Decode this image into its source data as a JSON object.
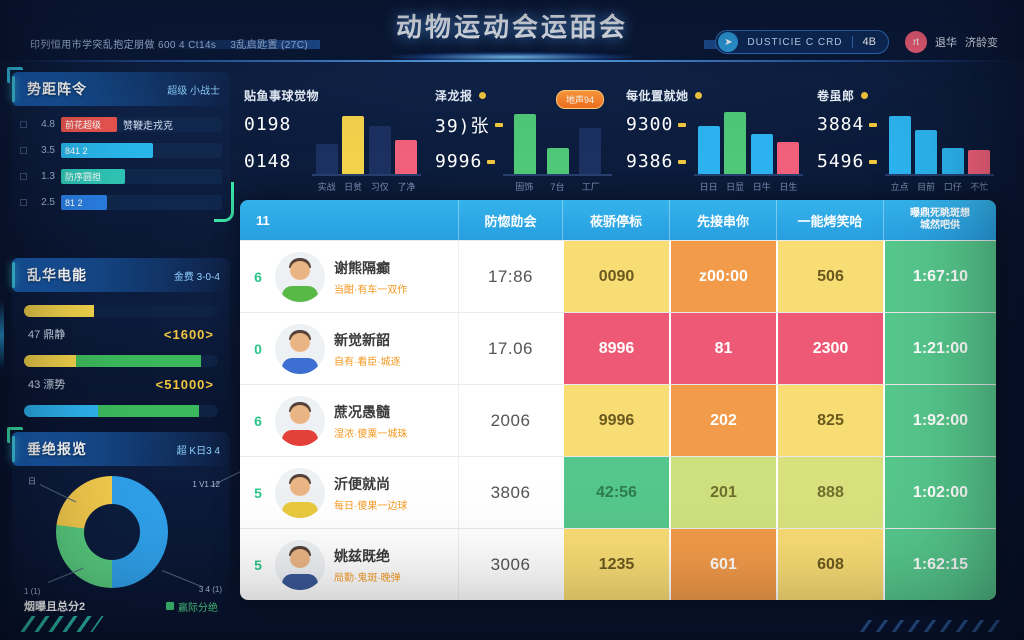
{
  "title": "动物运动会运皕会",
  "header": {
    "info_left": "印列恒用市学突乱抱定朋做 600 4 Ct14s",
    "info_left2": "3乱启匙置 (27C)",
    "pill": {
      "icon": "paper-plane-icon",
      "label": "DUSTICIE C CRD",
      "badge": "4B"
    },
    "user": {
      "initials": "rt",
      "name": "退华",
      "name2": "济龄变"
    }
  },
  "sidebar": {
    "panel1": {
      "title": "势距阵令",
      "link": "超级 小战士",
      "items": [
        {
          "num": "4.8",
          "label": "前花超级",
          "extra": "赞鞭走戎克",
          "seg_style": "width:56px;background:#e8544f"
        },
        {
          "num": "3.5",
          "label": "841 2",
          "extra": "",
          "seg_style": "width:92px;background:#29b6ea"
        },
        {
          "num": "1.3",
          "label": "防序圆担",
          "extra": "",
          "seg_style": "width:64px;background:#2fc4b4"
        },
        {
          "num": "2.5",
          "label": "81 2",
          "extra": "",
          "seg_style": "width:46px;background:#2a7de1"
        }
      ]
    },
    "panel2": {
      "title": "乱华电能",
      "link": "金费 3-0-4",
      "bar1_seg1": "width:36%;background:#f2d24b",
      "bar1_seg2": "width:0%;background:transparent",
      "row1_label": "47 鼎静",
      "row1_value": "<1600>",
      "bar2_seg1": "width:27%;background:#f2d24b",
      "bar2_seg2": "width:64%;background:#3cb85c",
      "row2_label": "43 漂势",
      "row2_value": "<51000>",
      "bar3_seg1": "width:38%;background:#2db2ef",
      "bar3_seg2": "width:52%;background:#3cb85c"
    },
    "panel3": {
      "title": "垂绝报览",
      "link": "超 K日3 4",
      "donut_style": "background:conic-gradient(#2f9fe8 0% 50%,#57c97d 50% 77%,#f2c94c 77% 100%)",
      "labels": {
        "tl": "日",
        "tr": "1 V1 12",
        "br": "3 4 (1)",
        "bl": "1 (1)"
      },
      "footer_left": "烟曝且总分2",
      "footer_right": "赢际分绝"
    }
  },
  "kpis": [
    {
      "title": "贴鱼事球觉物",
      "v1": "0198",
      "v2": "0148",
      "badge": "",
      "bars": [
        {
          "style": "height:30px;background:#1d3160",
          "label": "实战"
        },
        {
          "style": "height:58px;background:#f2d24b",
          "label": "日贫"
        },
        {
          "style": "height:48px;background:#1d3160",
          "label": "习仅"
        },
        {
          "style": "height:34px;background:#f2617c",
          "label": "了净"
        }
      ]
    },
    {
      "title": "泽龙报",
      "v1": "39)张",
      "v2": "9996",
      "badge": "地声94",
      "bars": [
        {
          "style": "height:60px;background:#4fc878",
          "label": "固饰"
        },
        {
          "style": "height:26px;background:#4fc878",
          "label": "7台"
        },
        {
          "style": "height:46px;background:#1d3160",
          "label": "工厂"
        }
      ]
    },
    {
      "title": "每仳置就她",
      "v1": "9300",
      "v2": "9386",
      "badge": "",
      "bars": [
        {
          "style": "height:48px;background:#2cb3ef",
          "label": "日日"
        },
        {
          "style": "height:62px;background:#4fc878",
          "label": "日显"
        },
        {
          "style": "height:40px;background:#2cb3ef",
          "label": "日牛"
        },
        {
          "style": "height:32px;background:#f2617c",
          "label": "日生"
        }
      ]
    },
    {
      "title": "卷虽郎",
      "v1": "3884",
      "v2": "5496",
      "badge": "",
      "bars": [
        {
          "style": "height:58px;background:#2cb3ef",
          "label": "立点"
        },
        {
          "style": "height:44px;background:#2cb3ef",
          "label": "目前"
        },
        {
          "style": "height:26px;background:#2cb3ef",
          "label": "口仔"
        },
        {
          "style": "height:24px;background:#f2617c",
          "label": "不忙"
        }
      ]
    }
  ],
  "table": {
    "headers": [
      "11",
      "防惚勆会",
      "莜骄停标",
      "先接串你",
      "一能烤笑哈",
      "曝鼎死眺斑想\n城然吧供"
    ],
    "rows": [
      {
        "rank": "6",
        "name": "谢熊隔癫",
        "sub": "当酣·有车一双作",
        "shirt": "background:#58b947",
        "time": "17:86",
        "c1": {
          "v": "0090",
          "style": "background:#f8dc74;color:#6b5a1f"
        },
        "c2": {
          "v": "z00:00",
          "style": "background:#f29b4a;color:#ffffff"
        },
        "c3": {
          "v": "506",
          "style": "background:#f8dc74;color:#6b5a1f"
        },
        "c4": {
          "v": "1:67:10",
          "style": "background:#56c78c;color:#ffffff"
        }
      },
      {
        "rank": "0",
        "name": "新觉新韶",
        "sub": "自有·看臣·城逐",
        "shirt": "background:#3c6fd1",
        "time": "17.06",
        "c1": {
          "v": "8996",
          "style": "background:#ee5a75;color:#ffffff"
        },
        "c2": {
          "v": "81",
          "style": "background:#ee5a75;color:#ffffff"
        },
        "c3": {
          "v": "2300",
          "style": "background:#ee5a75;color:#ffffff"
        },
        "c4": {
          "v": "1:21:00",
          "style": "background:#56c78c;color:#ffffff"
        }
      },
      {
        "rank": "6",
        "name": "蔗况愚髓",
        "sub": "湿浓·傻粟一城珠",
        "shirt": "background:#e4403a",
        "time": "2006",
        "c1": {
          "v": "9996",
          "style": "background:#f8dc74;color:#6b5a1f"
        },
        "c2": {
          "v": "202",
          "style": "background:#f29b4a;color:#ffffff"
        },
        "c3": {
          "v": "825",
          "style": "background:#f8dc74;color:#6b5a1f"
        },
        "c4": {
          "v": "1:92:00",
          "style": "background:#56c78c;color:#ffffff"
        }
      },
      {
        "rank": "5",
        "name": "沂便就尚",
        "sub": "每日·傻果一边球",
        "shirt": "background:#e8c93e",
        "time": "3806",
        "c1": {
          "v": "42:56",
          "style": "background:#56c78c;color:#2e7d50"
        },
        "c2": {
          "v": "201",
          "style": "background:#cfe07e;color:#70702e"
        },
        "c3": {
          "v": "888",
          "style": "background:#d9e17e;color:#70702e"
        },
        "c4": {
          "v": "1:02:00",
          "style": "background:#56c78c;color:#ffffff"
        }
      },
      {
        "rank": "5",
        "name": "姚兹既绝",
        "sub": "局勤·鬼斑·晚弹",
        "shirt": "background:#3b5998",
        "time": "3006",
        "c1": {
          "v": "1235",
          "style": "background:#f8dc74;color:#6b5a1f"
        },
        "c2": {
          "v": "601",
          "style": "background:#f29b4a;color:#ffffff"
        },
        "c3": {
          "v": "608",
          "style": "background:#f8dc74;color:#6b5a1f"
        },
        "c4": {
          "v": "1:62:15",
          "style": "background:#56c78c;color:#ffffff"
        }
      }
    ]
  },
  "chart_data": [
    {
      "type": "bar",
      "title": "贴鱼事球觉物",
      "categories": [
        "实战",
        "日贫",
        "习仅",
        "了净"
      ],
      "values": [
        30,
        58,
        48,
        34
      ],
      "colors": [
        "#1d3160",
        "#f2d24b",
        "#1d3160",
        "#f2617c"
      ]
    },
    {
      "type": "bar",
      "title": "泽龙报",
      "categories": [
        "固饰",
        "7台",
        "工厂"
      ],
      "values": [
        60,
        26,
        46
      ],
      "colors": [
        "#4fc878",
        "#4fc878",
        "#1d3160"
      ]
    },
    {
      "type": "bar",
      "title": "每仳置就她",
      "categories": [
        "日日",
        "日显",
        "日牛",
        "日生"
      ],
      "values": [
        48,
        62,
        40,
        32
      ],
      "colors": [
        "#2cb3ef",
        "#4fc878",
        "#2cb3ef",
        "#f2617c"
      ]
    },
    {
      "type": "bar",
      "title": "卷虽郎",
      "categories": [
        "立点",
        "目前",
        "口仔",
        "不忙"
      ],
      "values": [
        58,
        44,
        26,
        24
      ],
      "colors": [
        "#2cb3ef",
        "#2cb3ef",
        "#2cb3ef",
        "#f2617c"
      ]
    },
    {
      "type": "pie",
      "title": "垂绝报览",
      "categories": [
        "blue",
        "green",
        "yellow"
      ],
      "values": [
        50,
        27,
        23
      ],
      "colors": [
        "#2f9fe8",
        "#57c97d",
        "#f2c94c"
      ]
    }
  ]
}
